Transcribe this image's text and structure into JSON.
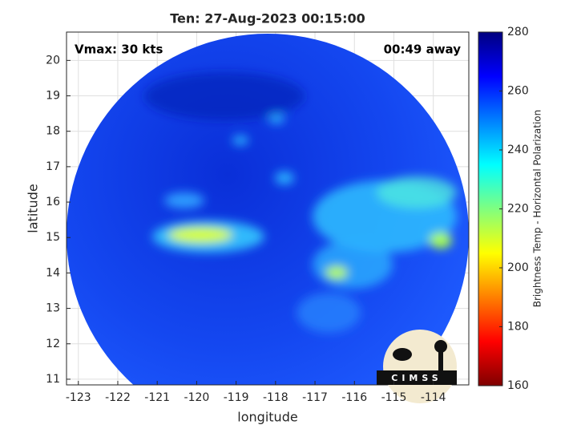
{
  "chart_data": {
    "type": "map",
    "title": "Ten: 27-Aug-2023 00:15:00",
    "annotations": [
      "Vmax: 30 kts",
      "00:49 away"
    ],
    "xlabel": "longitude",
    "ylabel": "latitude",
    "xlim": [
      -123.3,
      -113.1
    ],
    "ylim": [
      10.84,
      20.8
    ],
    "xticks": [
      -123,
      -122,
      -121,
      -120,
      -119,
      -118,
      -117,
      -116,
      -115,
      -114
    ],
    "yticks": [
      11,
      12,
      13,
      14,
      15,
      16,
      17,
      18,
      19,
      20
    ],
    "grid": true,
    "colorbar": {
      "label": "Brightness Temp - Horizontal Polarization",
      "lim": [
        160,
        280
      ],
      "ticks": [
        160,
        180,
        200,
        220,
        240,
        260,
        280
      ],
      "colormap": "jet"
    },
    "logo": "CIMSS"
  }
}
